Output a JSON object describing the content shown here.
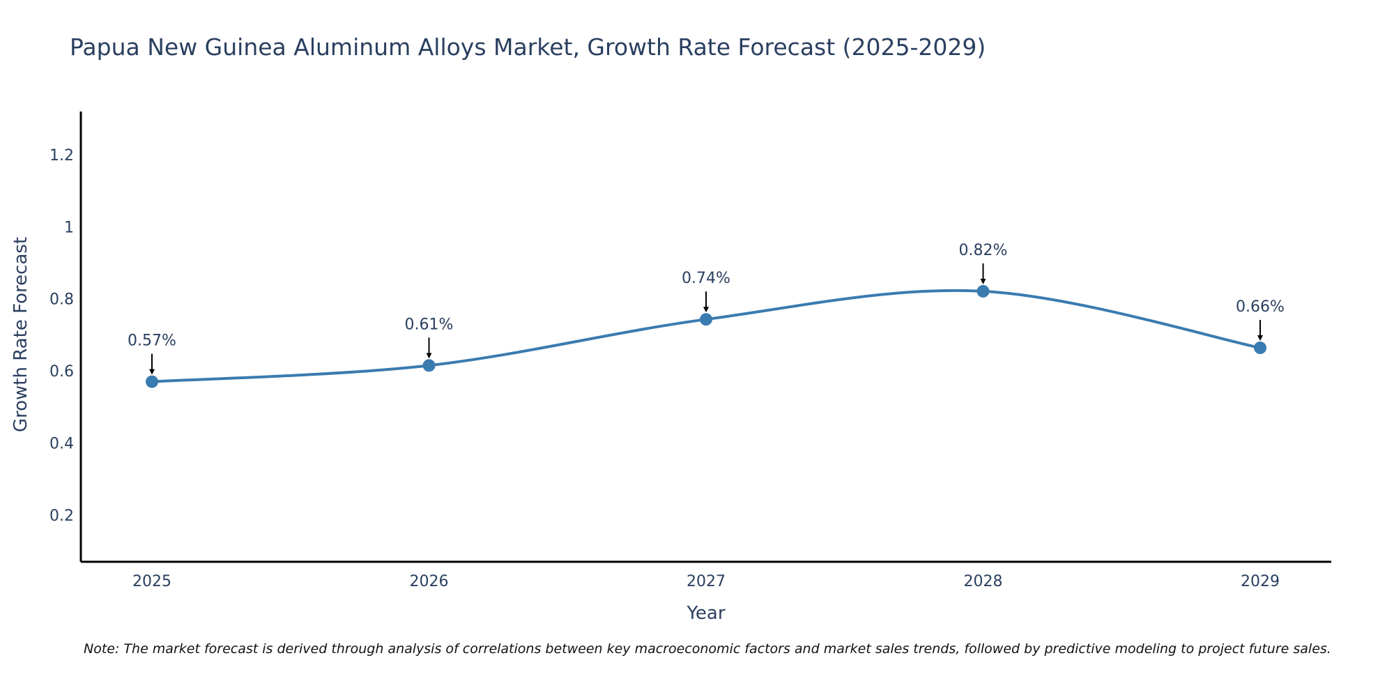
{
  "chart_data": {
    "type": "line",
    "title": "Papua New Guinea Aluminum Alloys Market, Growth Rate Forecast (2025-2029)",
    "xlabel": "Year",
    "ylabel": "Growth Rate Forecast",
    "categories": [
      "2025",
      "2026",
      "2027",
      "2028",
      "2029"
    ],
    "series": [
      {
        "name": "Growth Rate Forecast",
        "values": [
          0.57,
          0.615,
          0.743,
          0.821,
          0.664
        ],
        "labels": [
          "0.57%",
          "0.61%",
          "0.74%",
          "0.82%",
          "0.66%"
        ]
      }
    ],
    "ylim": [
      0.07,
      1.32
    ],
    "yticks": [
      0.2,
      0.4,
      0.6,
      0.8,
      1.0,
      1.2
    ],
    "ytick_labels": [
      "0.2",
      "0.4",
      "0.6",
      "0.8",
      "1",
      "1.2"
    ],
    "grid": false,
    "line_color": "#3a7bb0",
    "note": "Note: The market forecast is derived through analysis of correlations between key macroeconomic factors and market sales trends, followed by predictive modeling to project future sales."
  }
}
